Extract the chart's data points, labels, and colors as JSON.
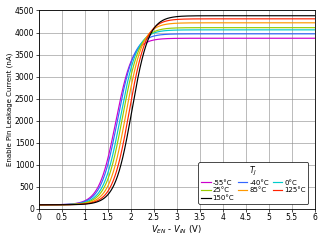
{
  "title": "",
  "xlabel": "V_{EN} - V_{IN} (V)",
  "ylabel": "Enable Pin Leakage Current (nA)",
  "xlim": [
    0,
    6
  ],
  "ylim": [
    0,
    4500
  ],
  "xticks": [
    0,
    0.5,
    1,
    1.5,
    2,
    2.5,
    3,
    3.5,
    4,
    4.5,
    5,
    5.5,
    6
  ],
  "yticks": [
    0,
    500,
    1000,
    1500,
    2000,
    2500,
    3000,
    3500,
    4000,
    4500
  ],
  "legend_title": "T_J",
  "series": [
    {
      "label": "-55°C",
      "color": "#cc00cc",
      "plateau": 3870,
      "x0": 1.68,
      "k": 5.5,
      "base": 95
    },
    {
      "label": "-40°C",
      "color": "#3366ff",
      "plateau": 3970,
      "x0": 1.72,
      "k": 5.5,
      "base": 95
    },
    {
      "label": "0°C",
      "color": "#00cccc",
      "plateau": 4060,
      "x0": 1.78,
      "k": 5.5,
      "base": 95
    },
    {
      "label": "25°C",
      "color": "#99cc00",
      "plateau": 4110,
      "x0": 1.83,
      "k": 5.5,
      "base": 95
    },
    {
      "label": "85°C",
      "color": "#ff9900",
      "plateau": 4220,
      "x0": 1.9,
      "k": 5.5,
      "base": 95
    },
    {
      "label": "125°C",
      "color": "#ff2200",
      "plateau": 4310,
      "x0": 1.97,
      "k": 5.5,
      "base": 95
    },
    {
      "label": "150°C",
      "color": "#000000",
      "plateau": 4380,
      "x0": 2.03,
      "k": 5.5,
      "base": 95
    }
  ],
  "background_color": "#ffffff",
  "grid_color": "#999999"
}
